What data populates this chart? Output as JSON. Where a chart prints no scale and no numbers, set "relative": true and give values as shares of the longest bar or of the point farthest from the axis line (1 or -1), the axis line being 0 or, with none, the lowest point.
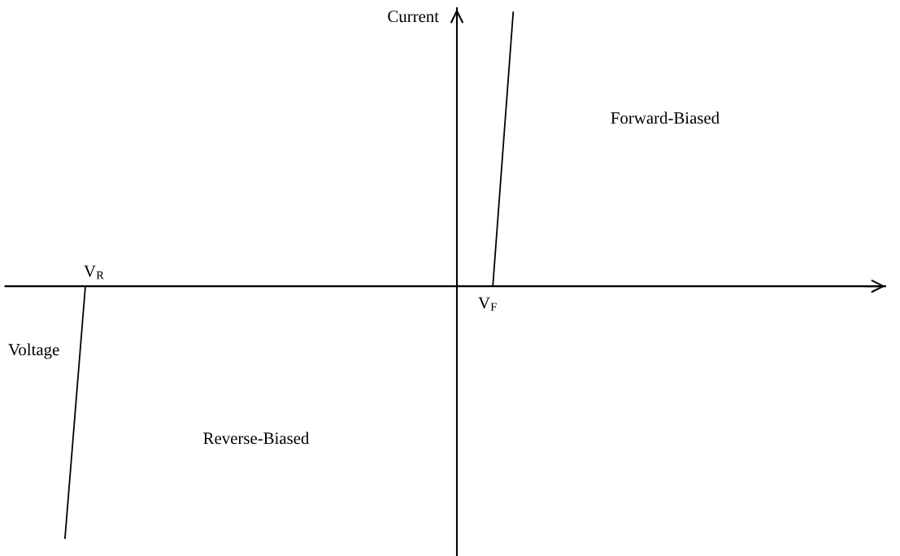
{
  "chart_data": {
    "type": "line",
    "relative": true,
    "xlabel": "Voltage",
    "ylabel": "Current",
    "categories": [
      null,
      null,
      null,
      null,
      null,
      null,
      null,
      null,
      null,
      null,
      null,
      null,
      null,
      null,
      null,
      null,
      null,
      null,
      null,
      null,
      null,
      null,
      null
    ],
    "series": [
      {
        "color": "#000000",
        "values": [
          null,
          null,
          null,
          null,
          null,
          null,
          null,
          null,
          null,
          null,
          null,
          null,
          null,
          null,
          null,
          null,
          null,
          null,
          null,
          null,
          null,
          0,
          1
        ]
      },
      {
        "color": "#000000",
        "values": [
          -0.92,
          0,
          null,
          null,
          null,
          null,
          null,
          null,
          null,
          null,
          null,
          null,
          null,
          null,
          null,
          null,
          null,
          null,
          null,
          null,
          null,
          null,
          null
        ]
      }
    ],
    "annotations": [
      "V$_{R}$",
      "V$_{F}$",
      "Forward-Biased",
      "Reverse-Biased"
    ],
    "marker": "none",
    "line_style": "solid"
  }
}
